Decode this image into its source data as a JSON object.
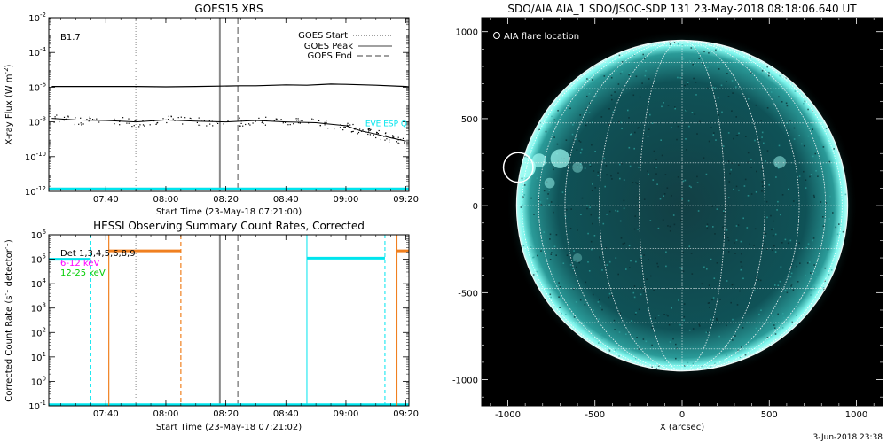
{
  "colors": {
    "goes_flux": "#000000",
    "eve": "#00e5ee",
    "hessi_6_12": "#ff00ff",
    "hessi_12_25": "#00cc00",
    "hessi_3_6": "#f08020",
    "cyan_band": "#00e5ee",
    "sun_face": "#0d4f52",
    "sun_limb": "#7ff7ee"
  },
  "chart_data": [
    {
      "type": "line",
      "title": "GOES15 XRS",
      "xlabel": "Start Time (23-May-18 07:21:00)",
      "ylabel": "X-ray Flux (W m",
      "ylabel_sup": "-2",
      "ylabel_end": ")",
      "ylim": [
        1e-12,
        0.01
      ],
      "yscale": "log",
      "x_ticks": [
        "07:40",
        "08:00",
        "08:20",
        "08:40",
        "09:00",
        "09:20"
      ],
      "y_ticks": [
        {
          "value": 1e-12,
          "base": "10",
          "exp": "-12"
        },
        {
          "value": 1e-10,
          "base": "10",
          "exp": "-10"
        },
        {
          "value": 1e-08,
          "base": "10",
          "exp": "-8"
        },
        {
          "value": 1e-06,
          "base": "10",
          "exp": "-6"
        },
        {
          "value": 0.0001,
          "base": "10",
          "exp": "-4"
        },
        {
          "value": 0.01,
          "base": "10",
          "exp": "-2"
        }
      ],
      "flare_class": "B1.7",
      "legend": [
        "GOES Start",
        "GOES Peak",
        "GOES End"
      ],
      "markers": {
        "start": "07:50",
        "peak": "08:18",
        "end": "08:24"
      },
      "eve_label": "EVE ESP Q",
      "series": [
        {
          "name": "",
          "x": [
            "07:22",
            "07:30",
            "07:40",
            "07:50",
            "08:00",
            "08:10",
            "08:18",
            "08:25",
            "08:30",
            "08:40",
            "08:47",
            "08:55",
            "09:00",
            "09:10",
            "09:20",
            "09:21"
          ],
          "values": [
            1.1e-06,
            1.1e-06,
            1.1e-06,
            1.1e-06,
            1.05e-06,
            1.1e-06,
            1.15e-06,
            1.2e-06,
            1.2e-06,
            1.35e-06,
            1.3e-06,
            1.5e-06,
            1.45e-06,
            1.3e-06,
            1.1e-06,
            1.05e-06
          ]
        },
        {
          "name": "",
          "x": [
            "07:22",
            "07:30",
            "07:40",
            "07:50",
            "08:00",
            "08:10",
            "08:20",
            "08:30",
            "08:40",
            "08:50",
            "09:00",
            "09:05",
            "09:10",
            "09:15",
            "09:20"
          ],
          "values": [
            1.6e-08,
            1.3e-08,
            1.2e-08,
            1e-08,
            1.3e-08,
            1.1e-08,
            1e-08,
            1.2e-08,
            1e-08,
            9e-09,
            6e-09,
            3e-09,
            2e-09,
            1.2e-09,
            8e-10
          ]
        }
      ]
    },
    {
      "type": "line",
      "title": "HESSI Observing Summary Count Rates, Corrected",
      "xlabel": "Start Time (23-May-18 07:21:02)",
      "ylabel": "Corrected Count Rate (s",
      "ylabel_sup1": "-1",
      "ylabel_mid": " detector",
      "ylabel_sup2": "-1",
      "ylabel_end": ")",
      "ylim": [
        0.1,
        1000000.0
      ],
      "yscale": "log",
      "x_ticks": [
        "07:40",
        "08:00",
        "08:20",
        "08:40",
        "09:00",
        "09:20"
      ],
      "y_ticks": [
        {
          "value": 0.1,
          "base": "10",
          "exp": "-1"
        },
        {
          "value": 1,
          "base": "10",
          "exp": "0"
        },
        {
          "value": 10,
          "base": "10",
          "exp": "1"
        },
        {
          "value": 100,
          "base": "10",
          "exp": "2"
        },
        {
          "value": 1000,
          "base": "10",
          "exp": "3"
        },
        {
          "value": 10000,
          "base": "10",
          "exp": "4"
        },
        {
          "value": 100000,
          "base": "10",
          "exp": "5"
        },
        {
          "value": 1000000,
          "base": "10",
          "exp": "6"
        }
      ],
      "legend": [
        "Det 1,3,4,5,6,8,9",
        "6-12 keV",
        "12-25 keV"
      ],
      "markers": {
        "start": "07:50",
        "peak": "08:18",
        "end": "08:24"
      },
      "series": [
        {
          "name": "",
          "x": [
            "07:21",
            "07:35"
          ],
          "values": [
            100000,
            100000
          ]
        },
        {
          "name": "",
          "x": [
            "07:41",
            "08:05"
          ],
          "values": [
            220000,
            220000
          ]
        },
        {
          "name": "",
          "x": [
            "08:47",
            "09:13"
          ],
          "values": [
            110000,
            110000
          ]
        },
        {
          "name": "",
          "x": [
            "09:17",
            "09:21"
          ],
          "values": [
            220000,
            220000
          ]
        }
      ],
      "night_lines": {
        "cyan": [
          "07:35",
          "08:47",
          "09:13"
        ],
        "orange": [
          "07:41",
          "08:05",
          "09:17"
        ]
      }
    },
    {
      "type": "heatmap",
      "title": "SDO/AIA AIA_1 SDO/JSOC-SDP 131 23-May-2018 08:18:06.640 UT",
      "xlabel": "X (arcsec)",
      "ylabel": "",
      "xlim": [
        -1150,
        1150
      ],
      "ylim": [
        -1150,
        1080
      ],
      "x_ticks": [
        -1000,
        -500,
        0,
        500,
        1000
      ],
      "y_ticks": [
        -1000,
        -500,
        0,
        500,
        1000
      ],
      "legend": [
        "AIA flare location"
      ],
      "solar_radius": 950,
      "flare_location": {
        "x": -940,
        "y": 220,
        "r": 85
      }
    }
  ],
  "footer": {
    "timestamp": "3-Jun-2018 23:38"
  }
}
